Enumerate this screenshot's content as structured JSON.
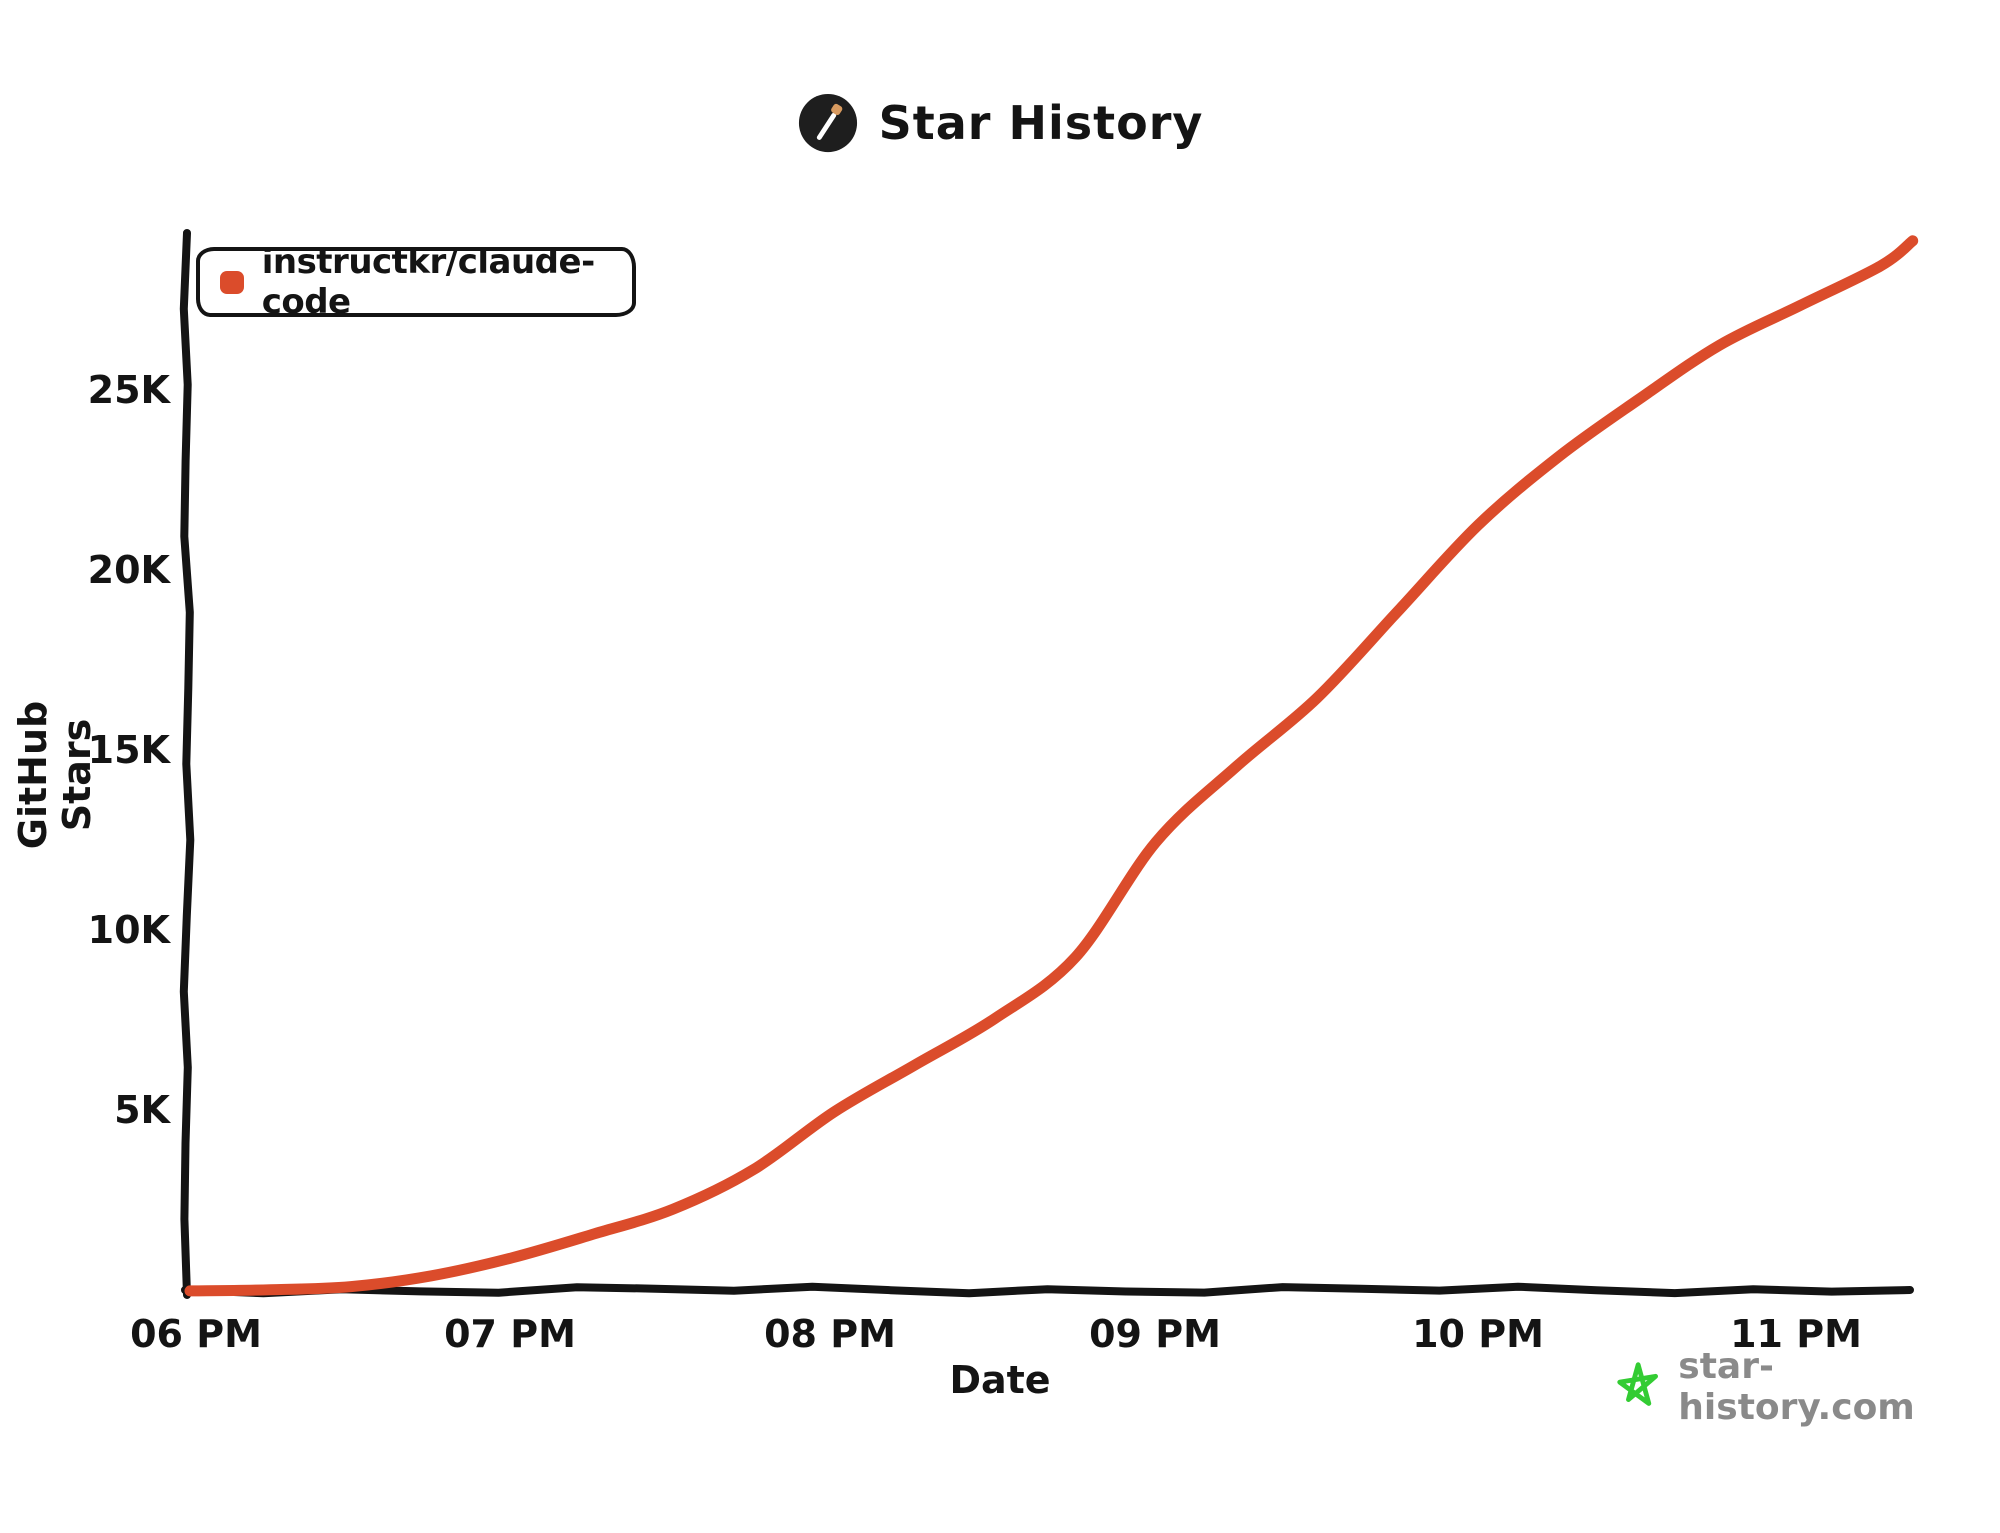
{
  "header": {
    "title": "Star History",
    "icon_bg": "#1e1e1e",
    "wand_color": "#ffffff",
    "wand_tip_color": "#d89a5f"
  },
  "legend": {
    "label": "instructkr/claude-code",
    "swatch_color": "#db4c2b"
  },
  "axes": {
    "y_label": "GitHub Stars",
    "x_label": "Date",
    "axis_color": "#141414",
    "y_ticks": [
      "25K",
      "20K",
      "15K",
      "10K",
      "5K"
    ],
    "x_ticks": [
      "06 PM",
      "07 PM",
      "08 PM",
      "09 PM",
      "10 PM",
      "11 PM"
    ]
  },
  "footer": {
    "site": "star-history.com",
    "star_color": "#33cc33",
    "text_color": "#8a8a8a"
  },
  "chart_data": {
    "type": "line",
    "title": "Star History",
    "xlabel": "Date",
    "ylabel": "GitHub Stars",
    "style": "hand-drawn-xkcd",
    "grid": false,
    "legend_position": "top-left",
    "x_unit": "hour_of_day_24h",
    "x_tick_values": [
      18,
      19,
      20,
      21,
      22,
      23
    ],
    "x_tick_labels": [
      "06 PM",
      "07 PM",
      "08 PM",
      "09 PM",
      "10 PM",
      "11 PM"
    ],
    "y_tick_values": [
      5000,
      10000,
      15000,
      20000,
      25000
    ],
    "y_tick_labels": [
      "5K",
      "10K",
      "15K",
      "20K",
      "25K"
    ],
    "xlim": [
      18.0,
      23.45
    ],
    "ylim": [
      0,
      29400
    ],
    "x": [
      18.0,
      18.25,
      18.5,
      18.75,
      19.0,
      19.25,
      19.5,
      19.75,
      20.0,
      20.25,
      20.5,
      20.75,
      21.0,
      21.25,
      21.5,
      21.75,
      22.0,
      22.25,
      22.5,
      22.75,
      23.0,
      23.25,
      23.35
    ],
    "series": [
      {
        "name": "instructkr/claude-code",
        "color": "#db4c2b",
        "values": [
          30,
          60,
          150,
          450,
          950,
          1600,
          2300,
          3400,
          5000,
          6300,
          7600,
          9300,
          12500,
          14600,
          16500,
          18900,
          21300,
          23200,
          24800,
          26300,
          27400,
          28500,
          29200
        ]
      }
    ]
  }
}
